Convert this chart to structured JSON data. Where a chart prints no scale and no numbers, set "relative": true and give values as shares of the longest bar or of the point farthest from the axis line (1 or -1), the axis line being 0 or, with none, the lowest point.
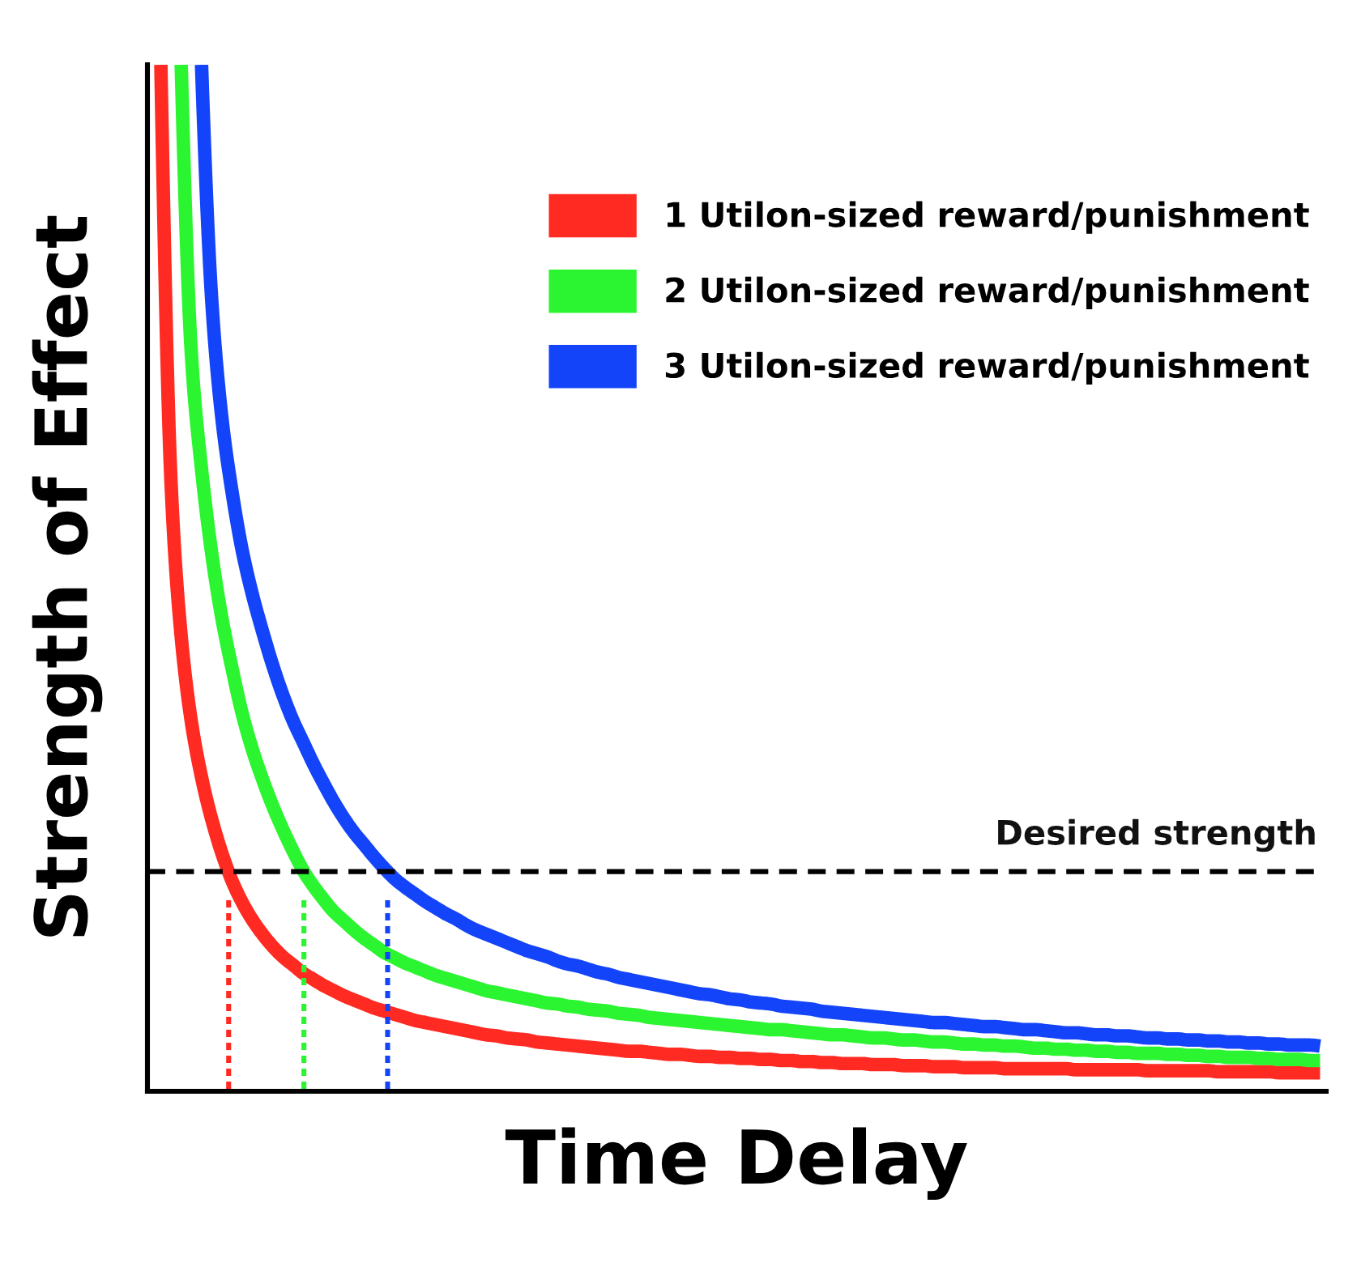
{
  "chart_data": {
    "type": "line",
    "relative": true,
    "tick_labels": false,
    "legend": "top right",
    "xlabel": "Time Delay",
    "ylabel": "Strength of Effect",
    "categories": [
      null,
      null,
      null,
      null,
      null,
      null,
      null,
      null,
      null,
      null,
      null,
      null,
      null,
      null,
      null,
      null,
      null,
      null,
      null,
      null,
      null,
      null,
      null,
      null,
      null,
      null,
      null,
      null,
      null,
      null,
      null,
      null,
      null,
      null,
      null,
      null,
      null,
      null,
      null,
      null,
      null,
      null,
      null,
      null,
      null,
      null,
      null,
      null,
      null,
      null,
      null,
      null,
      null,
      null,
      null,
      null,
      null,
      null,
      null,
      null,
      null,
      null,
      null,
      null,
      null,
      null,
      null,
      null,
      null,
      null,
      null,
      null,
      null,
      null,
      null,
      null,
      null,
      null,
      null,
      null,
      null,
      null,
      null,
      null,
      null,
      null,
      null,
      null,
      null,
      null,
      null,
      null,
      null,
      null,
      null,
      null,
      null,
      null,
      null,
      null,
      null,
      null,
      null,
      null,
      null,
      null,
      null,
      null,
      null,
      null,
      null,
      null,
      null,
      null,
      null
    ],
    "series": [
      {
        "name": "1 Utilon-sized reward/punishment",
        "color": "#ff2a22",
        "values": [
          1.0,
          0.593,
          0.443,
          0.36,
          0.306,
          0.265,
          0.232,
          0.205,
          0.184,
          0.167,
          0.153,
          0.141,
          0.131,
          0.123,
          0.115,
          0.109,
          0.103,
          0.098,
          0.093,
          0.089,
          0.085,
          0.081,
          0.078,
          0.075,
          0.072,
          0.069,
          0.067,
          0.065,
          0.063,
          0.061,
          0.059,
          0.057,
          0.055,
          0.054,
          0.052,
          0.051,
          0.05,
          0.048,
          0.047,
          0.046,
          0.045,
          0.044,
          0.043,
          0.042,
          0.041,
          0.04,
          0.039,
          0.039,
          0.038,
          0.037,
          0.036,
          0.036,
          0.035,
          0.034,
          0.034,
          0.033,
          0.033,
          0.032,
          0.032,
          0.031,
          0.031,
          0.03,
          0.03,
          0.029,
          0.029,
          0.028,
          0.028,
          0.027,
          0.027,
          0.027,
          0.026,
          0.026,
          0.026,
          0.025,
          0.025,
          0.025,
          0.024,
          0.024,
          0.024,
          0.023,
          0.023,
          0.023,
          0.023,
          0.022,
          0.022,
          0.022,
          0.022,
          0.022,
          0.022,
          0.022,
          0.021,
          0.021,
          0.021,
          0.021,
          0.021,
          0.021,
          0.021,
          0.02,
          0.02,
          0.02,
          0.02,
          0.02,
          0.02,
          0.02,
          0.019,
          0.019,
          0.019,
          0.019,
          0.019,
          0.019,
          0.018,
          0.018,
          0.018,
          0.018,
          0.018
        ]
      },
      {
        "name": "2 Utilon-sized reward/punishment",
        "color": "#2af530",
        "values": [
          null,
          null,
          1.0,
          0.718,
          0.606,
          0.524,
          0.461,
          0.412,
          0.368,
          0.333,
          0.304,
          0.278,
          0.255,
          0.234,
          0.215,
          0.2,
          0.187,
          0.175,
          0.166,
          0.157,
          0.149,
          0.142,
          0.135,
          0.13,
          0.125,
          0.121,
          0.117,
          0.113,
          0.11,
          0.107,
          0.104,
          0.101,
          0.098,
          0.096,
          0.094,
          0.092,
          0.09,
          0.088,
          0.086,
          0.085,
          0.083,
          0.082,
          0.08,
          0.079,
          0.078,
          0.076,
          0.075,
          0.074,
          0.072,
          0.071,
          0.07,
          0.069,
          0.068,
          0.067,
          0.066,
          0.065,
          0.064,
          0.063,
          0.062,
          0.061,
          0.06,
          0.06,
          0.059,
          0.058,
          0.057,
          0.056,
          0.055,
          0.055,
          0.054,
          0.053,
          0.052,
          0.052,
          0.051,
          0.05,
          0.05,
          0.049,
          0.048,
          0.048,
          0.047,
          0.046,
          0.046,
          0.045,
          0.045,
          0.044,
          0.044,
          0.043,
          0.042,
          0.042,
          0.041,
          0.041,
          0.04,
          0.04,
          0.039,
          0.039,
          0.038,
          0.038,
          0.037,
          0.037,
          0.037,
          0.036,
          0.036,
          0.035,
          0.035,
          0.034,
          0.034,
          0.033,
          0.033,
          0.033,
          0.032,
          0.032,
          0.031,
          0.031,
          0.031,
          0.03,
          0.03
        ]
      },
      {
        "name": "3 Utilon-sized reward/punishment",
        "color": "#1444fa",
        "values": [
          null,
          null,
          null,
          null,
          1.0,
          0.771,
          0.656,
          0.584,
          0.527,
          0.484,
          0.448,
          0.415,
          0.386,
          0.361,
          0.34,
          0.319,
          0.3,
          0.282,
          0.266,
          0.252,
          0.24,
          0.228,
          0.217,
          0.207,
          0.199,
          0.192,
          0.185,
          0.179,
          0.173,
          0.168,
          0.162,
          0.157,
          0.153,
          0.149,
          0.145,
          0.141,
          0.137,
          0.134,
          0.131,
          0.127,
          0.124,
          0.122,
          0.119,
          0.116,
          0.114,
          0.111,
          0.109,
          0.107,
          0.105,
          0.103,
          0.101,
          0.099,
          0.097,
          0.095,
          0.094,
          0.092,
          0.09,
          0.089,
          0.087,
          0.086,
          0.085,
          0.083,
          0.082,
          0.081,
          0.08,
          0.078,
          0.077,
          0.076,
          0.075,
          0.074,
          0.073,
          0.072,
          0.071,
          0.07,
          0.069,
          0.068,
          0.067,
          0.067,
          0.066,
          0.065,
          0.064,
          0.063,
          0.063,
          0.062,
          0.061,
          0.06,
          0.06,
          0.059,
          0.058,
          0.057,
          0.057,
          0.056,
          0.055,
          0.055,
          0.054,
          0.054,
          0.053,
          0.052,
          0.052,
          0.051,
          0.051,
          0.05,
          0.05,
          0.049,
          0.049,
          0.048,
          0.048,
          0.047,
          0.047,
          0.046,
          0.046,
          0.045,
          0.045,
          0.045,
          0.044
        ]
      }
    ],
    "ref_lines": [
      {
        "axis": "y",
        "value": 0.214,
        "label": "Desired strength",
        "color": "#000000",
        "line_style": "dashed"
      }
    ]
  }
}
